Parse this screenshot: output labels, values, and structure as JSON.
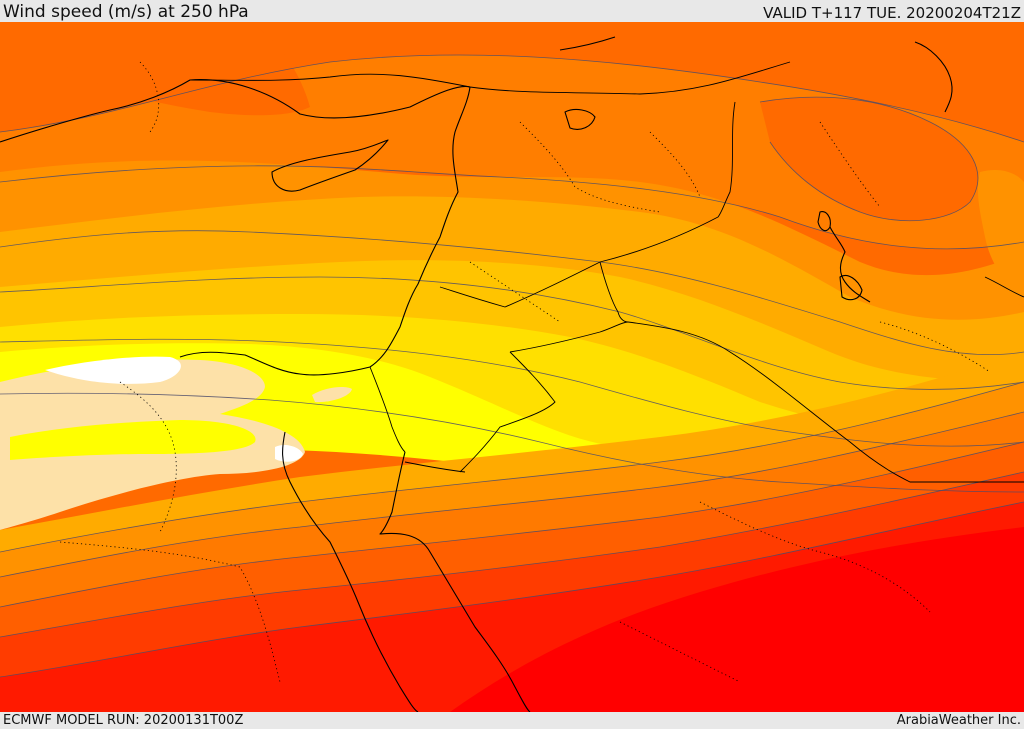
{
  "header": {
    "title": "Wind speed (m/s) at 250 hPa",
    "valid": "VALID T+117 TUE. 20200204T21Z"
  },
  "footer": {
    "model_run": "ECMWF MODEL RUN: 20200131T00Z",
    "credit": "ArabiaWeather Inc."
  },
  "map": {
    "parameter": "wind speed",
    "level": "250 hPa",
    "units": "m/s",
    "shading_colors": [
      "#fde1a8",
      "#ffff00",
      "#ffe000",
      "#ffc400",
      "#ffab00",
      "#ff9200",
      "#ff7a00",
      "#ff5f00",
      "#ff3c00",
      "#ff1a00",
      "#ff0000"
    ]
  }
}
